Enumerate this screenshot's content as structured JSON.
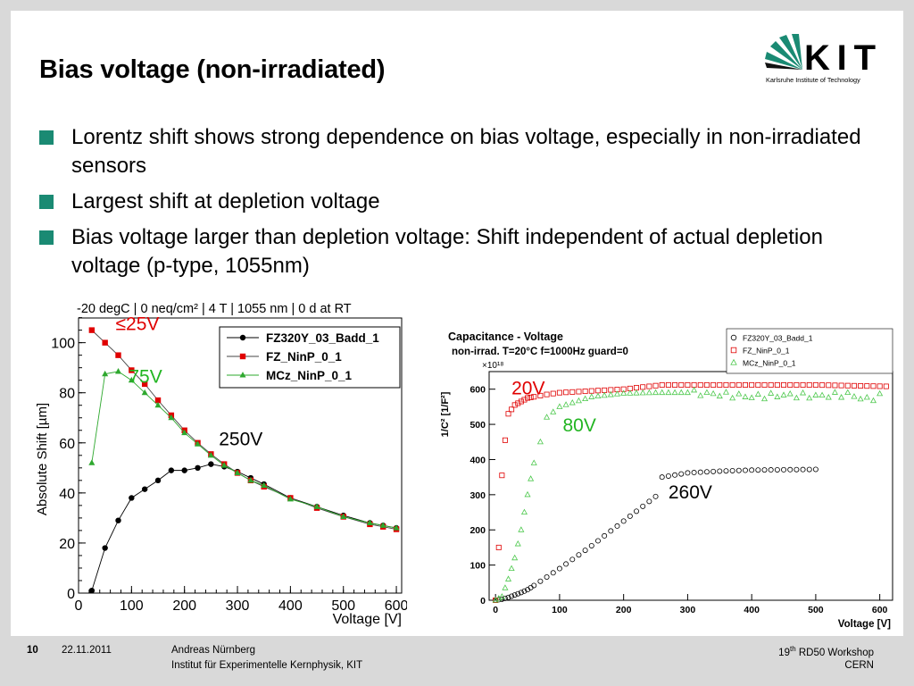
{
  "slide": {
    "title": "Bias voltage (non-irradiated)",
    "logo": {
      "name": "KIT",
      "subtitle": "Karlsruhe Institute of Technology"
    },
    "bullets": [
      "Lorentz shift shows strong dependence on bias voltage, especially in non-irradiated sensors",
      "Largest shift at depletion voltage",
      "Bias voltage larger than depletion voltage: Shift independent of actual depletion voltage (p-type, 1055nm)"
    ],
    "footer": {
      "page": "10",
      "date": "22.11.2011",
      "author": "Andreas Nürnberg",
      "institute": "Institut für Experimentelle Kernphysik, KIT",
      "event_num": "19",
      "event_sup": "th",
      "event_rest": " RD50 Workshop",
      "location": "CERN"
    },
    "accent_color": "#1a8a73"
  },
  "chart_data": [
    {
      "type": "line",
      "title": "-20 degC | 0 neq/cm² | 4 T | 1055 nm | 0 d at RT",
      "xlabel": "Voltage [V]",
      "ylabel": "Absolute Shift [µm]",
      "xlim": [
        0,
        610
      ],
      "ylim": [
        0,
        112
      ],
      "xticks": [
        "0",
        "100",
        "200",
        "300",
        "400",
        "500",
        "600"
      ],
      "yticks": [
        "0",
        "20",
        "40",
        "60",
        "80",
        "100"
      ],
      "legend": "top-right",
      "annotations": [
        {
          "text": "≤25V",
          "x": 70,
          "y": 105,
          "color": "#e00000"
        },
        {
          "text": "75V",
          "x": 95,
          "y": 84,
          "color": "#22b522"
        },
        {
          "text": "250V",
          "x": 265,
          "y": 59,
          "color": "#000000"
        }
      ],
      "series": [
        {
          "name": "FZ320Y_03_Badd_1",
          "color": "#000000",
          "marker": "circle",
          "x": [
            25,
            50,
            75,
            100,
            125,
            150,
            175,
            200,
            225,
            250,
            275,
            300,
            325,
            350,
            400,
            450,
            500,
            550,
            575,
            600
          ],
          "y": [
            1,
            18,
            29,
            38,
            41.5,
            45,
            49,
            49,
            50,
            51.5,
            50.5,
            48.5,
            46,
            43.5,
            38,
            34.5,
            31,
            28,
            27,
            26
          ]
        },
        {
          "name": "FZ_NinP_0_1",
          "color": "#e00000",
          "marker": "square",
          "x": [
            25,
            50,
            75,
            100,
            125,
            150,
            175,
            200,
            225,
            250,
            275,
            300,
            325,
            350,
            400,
            450,
            500,
            550,
            575,
            600
          ],
          "y": [
            105,
            100,
            95,
            89,
            83.5,
            77,
            71,
            65,
            60,
            55.5,
            51.5,
            48,
            45,
            42.5,
            38,
            34,
            30.5,
            27.5,
            26.5,
            25.5
          ]
        },
        {
          "name": "MCz_NinP_0_1",
          "color": "#2ea82e",
          "marker": "triangle",
          "x": [
            25,
            50,
            75,
            100,
            125,
            150,
            175,
            200,
            225,
            250,
            275,
            300,
            325,
            350,
            400,
            450,
            500,
            550,
            575,
            600
          ],
          "y": [
            52,
            87.5,
            88.5,
            85,
            80,
            75,
            70,
            64,
            59.5,
            55,
            51,
            48,
            45,
            43,
            37.5,
            34.5,
            30.5,
            28,
            27,
            26
          ]
        }
      ]
    },
    {
      "type": "scatter",
      "title": "Capacitance - Voltage",
      "subtitle": "non-irrad. T=20°C f=1000Hz guard=0",
      "xlabel": "Voltage [V]",
      "ylabel": "1/C² [1/F²]",
      "y_multiplier": "×10¹⁸",
      "xlim": [
        -10,
        620
      ],
      "ylim": [
        0,
        650
      ],
      "xticks": [
        "0",
        "100",
        "200",
        "300",
        "400",
        "500",
        "600"
      ],
      "yticks": [
        "0",
        "100",
        "200",
        "300",
        "400",
        "500",
        "600"
      ],
      "legend": "top-right",
      "annotations": [
        {
          "text": "20V",
          "x": 25,
          "y": 585,
          "color": "#e00000"
        },
        {
          "text": "80V",
          "x": 105,
          "y": 480,
          "color": "#22b522"
        },
        {
          "text": "260V",
          "x": 270,
          "y": 290,
          "color": "#000000"
        }
      ],
      "series": [
        {
          "name": "FZ320Y_03_Badd_1",
          "color": "#000000",
          "marker": "open-circle",
          "x": [
            0,
            10,
            20,
            30,
            40,
            50,
            100,
            150,
            200,
            250,
            260,
            300,
            350,
            400,
            450,
            500
          ],
          "y": [
            0,
            3,
            8,
            15,
            22,
            30,
            90,
            155,
            225,
            295,
            350,
            362,
            367,
            370,
            371,
            372
          ]
        },
        {
          "name": "FZ_NinP_0_1",
          "color": "#e00000",
          "marker": "open-square",
          "x": [
            0,
            5,
            10,
            15,
            20,
            30,
            50,
            80,
            100,
            150,
            200,
            260,
            300,
            400,
            500,
            580,
            610
          ],
          "y": [
            0,
            150,
            355,
            455,
            530,
            555,
            575,
            585,
            590,
            595,
            600,
            612,
            612,
            612,
            612,
            609,
            608
          ]
        },
        {
          "name": "MCz_NinP_0_1",
          "color": "#4cc84c",
          "marker": "open-triangle",
          "x": [
            0,
            10,
            20,
            30,
            40,
            50,
            60,
            70,
            80,
            100,
            150,
            200,
            250,
            300,
            350,
            400,
            450,
            500,
            550,
            580,
            600
          ],
          "y": [
            0,
            10,
            60,
            120,
            200,
            300,
            390,
            450,
            520,
            550,
            578,
            588,
            590,
            590,
            585,
            578,
            583,
            580,
            585,
            570,
            580
          ]
        }
      ]
    }
  ]
}
